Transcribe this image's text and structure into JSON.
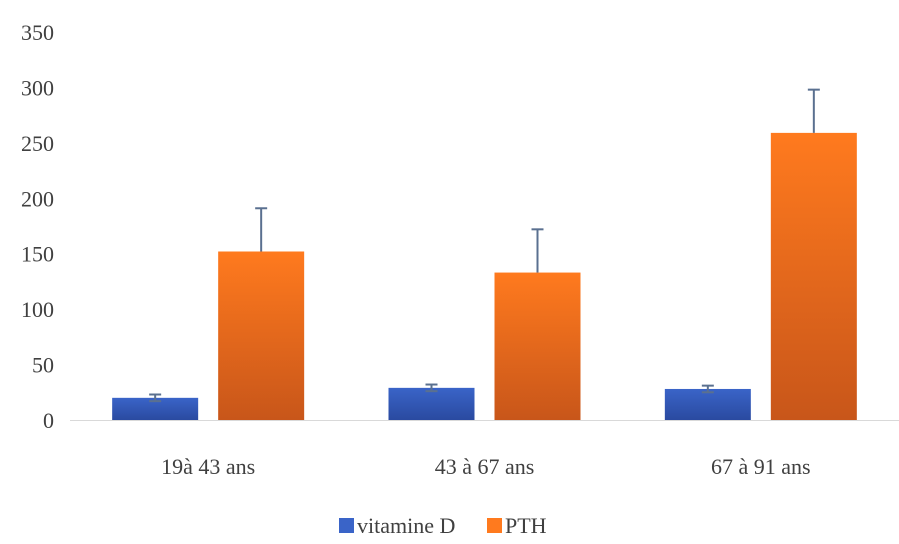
{
  "chart_data": {
    "type": "bar",
    "categories": [
      "19à  43 ans",
      "43 à 67 ans",
      "67 à 91 ans"
    ],
    "series": [
      {
        "name": "vitamine D",
        "values": [
          20,
          29,
          28
        ],
        "errors": [
          3,
          3,
          3
        ],
        "color": "#3a64c8",
        "color_dark": "#2a4aa0"
      },
      {
        "name": "PTH",
        "values": [
          152,
          133,
          259
        ],
        "errors": [
          39,
          39,
          39
        ],
        "color": "#ff7a1e",
        "color_dark": "#c8561a"
      }
    ],
    "ylim": [
      0,
      350
    ],
    "yticks": [
      0,
      50,
      100,
      150,
      200,
      250,
      300,
      350
    ],
    "error_bar_color": "#5a7090",
    "legend_position": "bottom",
    "grid": false
  }
}
